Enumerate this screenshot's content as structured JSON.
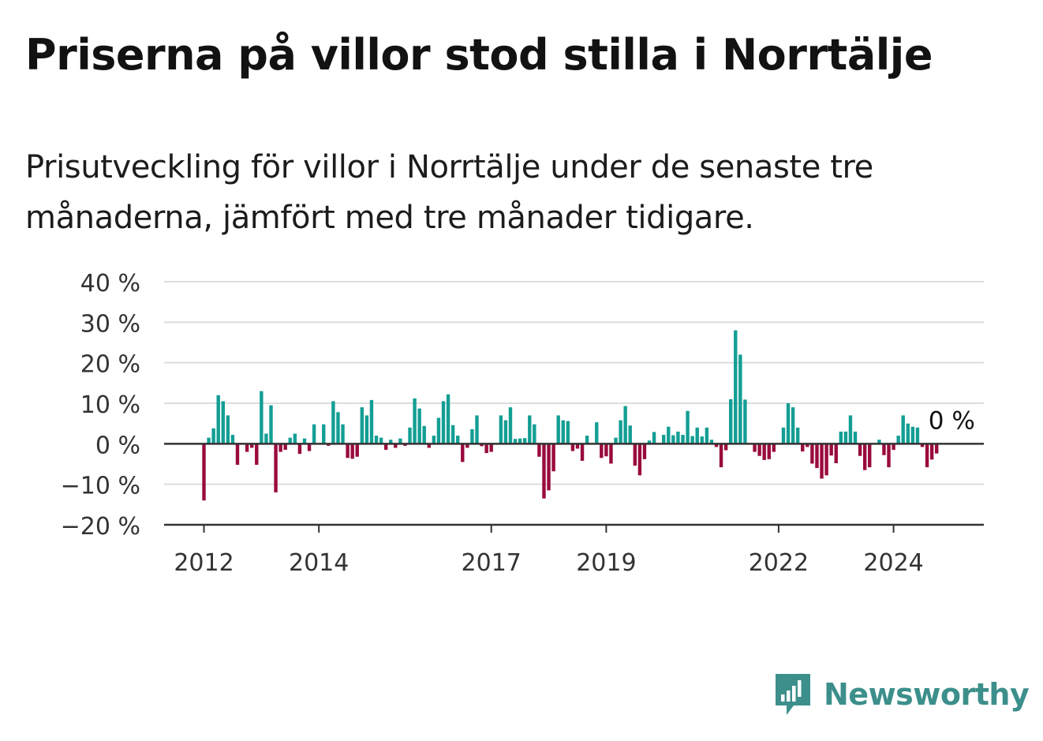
{
  "title": "Priserna på villor stod stilla i Norrtälje",
  "subtitle": "Prisutveckling för villor i Norrtälje under de senaste tre månaderna, jämfört med tre månader tidigare.",
  "brand": {
    "name": "Newsworthy",
    "icon": "newsworthy-logo-icon",
    "color": "#3c8f8b"
  },
  "colors": {
    "positive": "#139e94",
    "negative": "#990a3d",
    "grid": "#dddddd",
    "axis": "#333333"
  },
  "chart_data": {
    "type": "bar",
    "title": "Priserna på villor stod stilla i Norrtälje",
    "subtitle": "Prisutveckling för villor i Norrtälje under de senaste tre månaderna, jämfört med tre månader tidigare.",
    "xlabel": "",
    "ylabel": "",
    "ylim": [
      -20,
      40
    ],
    "yticks": [
      -20,
      -10,
      0,
      10,
      20,
      30,
      40
    ],
    "ytick_labels": [
      "−20 %",
      "−10 %",
      "0 %",
      "10 %",
      "20 %",
      "30 %",
      "40 %"
    ],
    "grid": true,
    "x_start": "2012-01",
    "xticks": [
      {
        "label": "2012",
        "index": 0
      },
      {
        "label": "2014",
        "index": 24
      },
      {
        "label": "2017",
        "index": 60
      },
      {
        "label": "2019",
        "index": 84
      },
      {
        "label": "2022",
        "index": 120
      },
      {
        "label": "2024",
        "index": 144
      }
    ],
    "annotation": {
      "text": "0 %",
      "index": 154,
      "value": 0
    },
    "months": [
      "2012-01",
      "2012-02",
      "2012-03",
      "2012-04",
      "2012-05",
      "2012-06",
      "2012-07",
      "2012-08",
      "2012-09",
      "2012-10",
      "2012-11",
      "2012-12",
      "2013-01",
      "2013-02",
      "2013-03",
      "2013-04",
      "2013-05",
      "2013-06",
      "2013-07",
      "2013-08",
      "2013-09",
      "2013-10",
      "2013-11",
      "2013-12",
      "2014-01",
      "2014-02",
      "2014-03",
      "2014-04",
      "2014-05",
      "2014-06",
      "2014-07",
      "2014-08",
      "2014-09",
      "2014-10",
      "2014-11",
      "2014-12",
      "2015-01",
      "2015-02",
      "2015-03",
      "2015-04",
      "2015-05",
      "2015-06",
      "2015-07",
      "2015-08",
      "2015-09",
      "2015-10",
      "2015-11",
      "2015-12",
      "2016-01",
      "2016-02",
      "2016-03",
      "2016-04",
      "2016-05",
      "2016-06",
      "2016-07",
      "2016-08",
      "2016-09",
      "2016-10",
      "2016-11",
      "2016-12",
      "2017-01",
      "2017-02",
      "2017-03",
      "2017-04",
      "2017-05",
      "2017-06",
      "2017-07",
      "2017-08",
      "2017-09",
      "2017-10",
      "2017-11",
      "2017-12",
      "2018-01",
      "2018-02",
      "2018-03",
      "2018-04",
      "2018-05",
      "2018-06",
      "2018-07",
      "2018-08",
      "2018-09",
      "2018-10",
      "2018-11",
      "2018-12",
      "2019-01",
      "2019-02",
      "2019-03",
      "2019-04",
      "2019-05",
      "2019-06",
      "2019-07",
      "2019-08",
      "2019-09",
      "2019-10",
      "2019-11",
      "2019-12",
      "2020-01",
      "2020-02",
      "2020-03",
      "2020-04",
      "2020-05",
      "2020-06",
      "2020-07",
      "2020-08",
      "2020-09",
      "2020-10",
      "2020-11",
      "2020-12",
      "2021-01",
      "2021-02",
      "2021-03",
      "2021-04",
      "2021-05",
      "2021-06",
      "2021-07",
      "2021-08",
      "2021-09",
      "2021-10",
      "2021-11",
      "2021-12",
      "2022-01",
      "2022-02",
      "2022-03",
      "2022-04",
      "2022-05",
      "2022-06",
      "2022-07",
      "2022-08",
      "2022-09",
      "2022-10",
      "2022-11",
      "2022-12",
      "2023-01",
      "2023-02",
      "2023-03",
      "2023-04",
      "2023-05",
      "2023-06",
      "2023-07",
      "2023-08",
      "2023-09",
      "2023-10",
      "2023-11",
      "2023-12",
      "2024-01",
      "2024-02",
      "2024-03",
      "2024-04",
      "2024-05",
      "2024-06",
      "2024-07",
      "2024-08",
      "2024-09",
      "2024-10",
      "2024-11"
    ],
    "values": [
      -14,
      1.5,
      3.8,
      12,
      10.5,
      7,
      2.2,
      -5.2,
      0,
      -2,
      -1,
      -5.2,
      13,
      2.5,
      9.5,
      -12,
      -2,
      -1.5,
      1.5,
      2.5,
      -2.5,
      1.3,
      -1.8,
      4.8,
      0,
      4.8,
      -0.5,
      10.5,
      7.8,
      4.8,
      -3.5,
      -3.7,
      -3.2,
      9,
      7,
      10.8,
      2,
      1.5,
      -1.5,
      1,
      -1,
      1.3,
      -0.5,
      4,
      11.2,
      8.7,
      4.4,
      -1,
      2,
      6.4,
      10.5,
      12.2,
      4.6,
      2,
      -4.5,
      -1,
      3.6,
      7,
      -0.6,
      -2.3,
      -2,
      0,
      7,
      5.8,
      9,
      1.2,
      1.3,
      1.4,
      7,
      4.8,
      -3.2,
      -13.5,
      -11.5,
      -6.8,
      7,
      5.8,
      5.6,
      -1.8,
      -1.2,
      -4.2,
      2,
      0,
      5.3,
      -3.5,
      -3.1,
      -4.9,
      1.5,
      5.8,
      9.3,
      4.5,
      -5.4,
      -7.8,
      -3.8,
      0.8,
      2.9,
      0,
      2.2,
      4.2,
      2.1,
      3,
      2.2,
      8.1,
      1.9,
      4,
      1.8,
      4,
      1,
      -0.8,
      -5.8,
      -1.6,
      11,
      28,
      22,
      10.9,
      0,
      -2,
      -3,
      -4,
      -3.8,
      -2,
      0,
      4,
      10,
      9,
      4,
      -1.9,
      -0.8,
      -4.9,
      -6,
      -8.6,
      -7.8,
      -2.9,
      -4.8,
      3,
      3,
      7,
      3,
      -3,
      -6.5,
      -5.8,
      0,
      1,
      -2.8,
      -5.8,
      -1.5,
      2,
      7,
      5,
      4.2,
      4,
      -0.8,
      -5.8,
      -3.9,
      -2.4,
      0
    ]
  }
}
